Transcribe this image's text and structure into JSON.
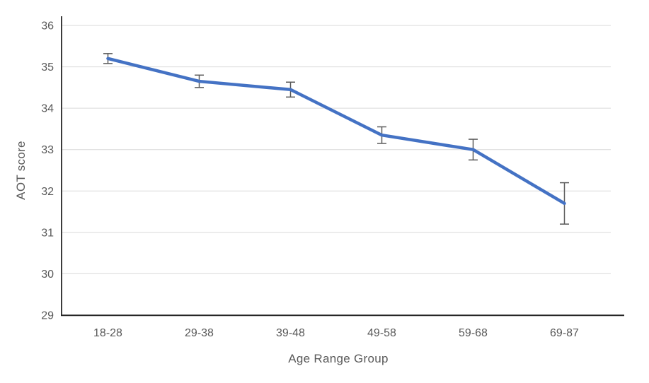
{
  "chart_data": {
    "type": "line",
    "title": "",
    "categories": [
      "18-28",
      "29-38",
      "39-48",
      "49-58",
      "59-68",
      "69-87"
    ],
    "values": [
      35.2,
      34.65,
      34.45,
      33.35,
      33.0,
      31.7
    ],
    "error_bars": [
      0.12,
      0.15,
      0.18,
      0.2,
      0.25,
      0.5
    ],
    "xlabel": "Age Range Group",
    "ylabel": "AOT score",
    "ylim": [
      29,
      36
    ],
    "yticks": [
      29,
      30,
      31,
      32,
      33,
      34,
      35,
      36
    ],
    "grid": "horizontal",
    "legend": "none",
    "colors": {
      "line": "#4472C4",
      "error_bar": "#595959",
      "gridline": "#D9D9D9",
      "axis_line": "#262626",
      "text": "#595959",
      "background": "#FFFFFF"
    }
  }
}
